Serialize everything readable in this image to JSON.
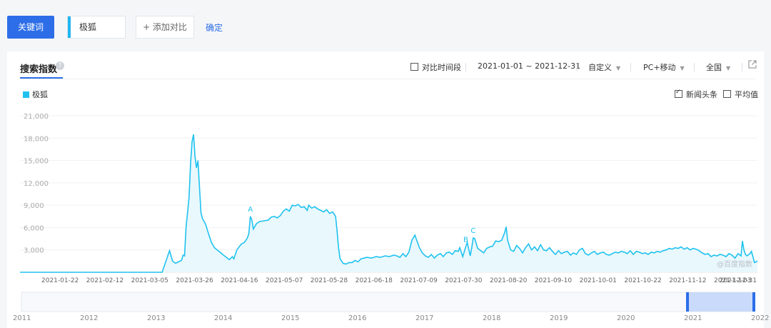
{
  "toolbar": {
    "keyword_button": "关键词",
    "keyword_value": "极狐",
    "add_compare": "+ 添加对比",
    "confirm": "确定"
  },
  "panel": {
    "title": "搜索指数",
    "help_icon": "?",
    "compare_period": "对比时间段",
    "date_range": "2021-01-01 ~ 2021-12-31",
    "custom": "自定义",
    "device": "PC+移动",
    "region": "全国",
    "news_label": "新闻头条",
    "avg_label": "平均值",
    "legend_label": "极狐",
    "watermark": "@百度指数"
  },
  "chart_data": {
    "type": "area",
    "color": "#1fc2ef",
    "legend": "top-left",
    "grid": true,
    "ylim": [
      0,
      21000
    ],
    "yticks": [
      "21,000",
      "18,000",
      "15,000",
      "12,000",
      "9,000",
      "6,000",
      "3,000"
    ],
    "ytick_values": [
      21000,
      18000,
      15000,
      12000,
      9000,
      6000,
      3000
    ],
    "xtick_labels": [
      "2021-01-22",
      "2021-02-12",
      "2021-03-05",
      "2021-03-26",
      "2021-04-16",
      "2021-05-07",
      "2021-05-28",
      "2021-06-18",
      "2021-07-09",
      "2021-07-30",
      "2021-08-20",
      "2021-09-10",
      "2021-10-01",
      "2021-10-22",
      "2021-11-12",
      "2021-12-03",
      "2021-12-31"
    ],
    "series": [
      {
        "name": "极狐",
        "points": [
          [
            0,
            0
          ],
          [
            95,
            0
          ],
          [
            100,
            2900
          ],
          [
            102,
            1500
          ],
          [
            104,
            1200
          ],
          [
            106,
            1400
          ],
          [
            108,
            1600
          ],
          [
            109,
            2300
          ],
          [
            110,
            2200
          ],
          [
            111,
            6000
          ],
          [
            112,
            8000
          ],
          [
            113,
            10000
          ],
          [
            114,
            14500
          ],
          [
            115,
            17500
          ],
          [
            116,
            18500
          ],
          [
            117,
            15500
          ],
          [
            118,
            14000
          ],
          [
            119,
            15000
          ],
          [
            120,
            11500
          ],
          [
            121,
            8000
          ],
          [
            122,
            7200
          ],
          [
            124,
            6500
          ],
          [
            126,
            5200
          ],
          [
            128,
            4000
          ],
          [
            130,
            3300
          ],
          [
            133,
            2800
          ],
          [
            136,
            2300
          ],
          [
            138,
            2000
          ],
          [
            140,
            1700
          ],
          [
            142,
            2100
          ],
          [
            143,
            1800
          ],
          [
            145,
            3000
          ],
          [
            148,
            3800
          ],
          [
            150,
            4000
          ],
          [
            152,
            4600
          ],
          [
            153,
            5200
          ],
          [
            154,
            7500
          ],
          [
            155,
            7000
          ],
          [
            156,
            5800
          ],
          [
            158,
            6500
          ],
          [
            160,
            6800
          ],
          [
            163,
            6900
          ],
          [
            166,
            7000
          ],
          [
            168,
            7400
          ],
          [
            170,
            7500
          ],
          [
            172,
            7300
          ],
          [
            174,
            7600
          ],
          [
            176,
            8200
          ],
          [
            178,
            8500
          ],
          [
            180,
            8200
          ],
          [
            182,
            9000
          ],
          [
            184,
            8900
          ],
          [
            186,
            9100
          ],
          [
            188,
            8700
          ],
          [
            190,
            8800
          ],
          [
            192,
            8300
          ],
          [
            193,
            9000
          ],
          [
            195,
            8600
          ],
          [
            197,
            8800
          ],
          [
            199,
            8500
          ],
          [
            201,
            8300
          ],
          [
            203,
            8100
          ],
          [
            205,
            8400
          ],
          [
            207,
            7900
          ],
          [
            209,
            8100
          ],
          [
            211,
            7500
          ],
          [
            212,
            5500
          ],
          [
            213,
            3200
          ],
          [
            214,
            1800
          ],
          [
            216,
            1200
          ],
          [
            218,
            1100
          ],
          [
            220,
            1300
          ],
          [
            222,
            1300
          ],
          [
            224,
            1600
          ],
          [
            226,
            1400
          ],
          [
            228,
            1800
          ],
          [
            230,
            1900
          ],
          [
            232,
            2000
          ],
          [
            235,
            1900
          ],
          [
            238,
            2100
          ],
          [
            241,
            2000
          ],
          [
            244,
            2200
          ],
          [
            247,
            2100
          ],
          [
            250,
            2300
          ],
          [
            252,
            2200
          ],
          [
            254,
            2000
          ],
          [
            256,
            2500
          ],
          [
            258,
            2100
          ],
          [
            260,
            2700
          ],
          [
            262,
            4300
          ],
          [
            264,
            5000
          ],
          [
            265,
            4400
          ],
          [
            267,
            3300
          ],
          [
            269,
            2600
          ],
          [
            271,
            2200
          ],
          [
            273,
            2000
          ],
          [
            275,
            2400
          ],
          [
            277,
            1900
          ],
          [
            279,
            2300
          ],
          [
            281,
            2500
          ],
          [
            283,
            2100
          ],
          [
            285,
            2600
          ],
          [
            287,
            2700
          ],
          [
            289,
            2400
          ],
          [
            291,
            2900
          ],
          [
            293,
            2800
          ],
          [
            294,
            3300
          ],
          [
            296,
            2100
          ],
          [
            298,
            3400
          ],
          [
            299,
            4000
          ],
          [
            301,
            2200
          ],
          [
            302,
            3300
          ],
          [
            303,
            4600
          ],
          [
            304,
            4500
          ],
          [
            306,
            3200
          ],
          [
            308,
            2900
          ],
          [
            310,
            2600
          ],
          [
            312,
            3200
          ],
          [
            314,
            3400
          ],
          [
            316,
            3500
          ],
          [
            318,
            4200
          ],
          [
            320,
            4100
          ],
          [
            322,
            4300
          ],
          [
            324,
            5300
          ],
          [
            325,
            6100
          ],
          [
            326,
            4300
          ],
          [
            328,
            3000
          ],
          [
            330,
            2800
          ],
          [
            332,
            3600
          ],
          [
            334,
            3200
          ],
          [
            336,
            2600
          ],
          [
            338,
            3300
          ],
          [
            340,
            3800
          ],
          [
            342,
            3000
          ],
          [
            344,
            3400
          ],
          [
            346,
            2900
          ],
          [
            348,
            3700
          ],
          [
            350,
            3000
          ],
          [
            352,
            2900
          ],
          [
            354,
            3300
          ],
          [
            356,
            2800
          ],
          [
            358,
            2400
          ],
          [
            360,
            2900
          ],
          [
            362,
            2500
          ],
          [
            364,
            2700
          ],
          [
            366,
            2800
          ],
          [
            368,
            2300
          ],
          [
            370,
            2600
          ],
          [
            372,
            2400
          ],
          [
            374,
            3000
          ],
          [
            376,
            3200
          ],
          [
            378,
            2500
          ],
          [
            380,
            2300
          ],
          [
            382,
            2600
          ],
          [
            384,
            2800
          ],
          [
            386,
            2400
          ],
          [
            388,
            2600
          ],
          [
            390,
            2700
          ],
          [
            392,
            2400
          ],
          [
            394,
            2300
          ],
          [
            396,
            2500
          ],
          [
            398,
            2700
          ],
          [
            400,
            2600
          ],
          [
            402,
            2800
          ],
          [
            404,
            2700
          ],
          [
            406,
            2500
          ],
          [
            408,
            2900
          ],
          [
            410,
            2400
          ],
          [
            412,
            2800
          ],
          [
            414,
            2700
          ],
          [
            416,
            2500
          ],
          [
            418,
            2600
          ],
          [
            420,
            2400
          ],
          [
            422,
            2700
          ],
          [
            424,
            2600
          ],
          [
            426,
            2800
          ],
          [
            428,
            2700
          ],
          [
            430,
            2900
          ],
          [
            432,
            3000
          ],
          [
            434,
            3200
          ],
          [
            436,
            3100
          ],
          [
            438,
            3300
          ],
          [
            440,
            3200
          ],
          [
            442,
            3400
          ],
          [
            444,
            3100
          ],
          [
            446,
            3300
          ],
          [
            448,
            3000
          ],
          [
            450,
            3200
          ],
          [
            452,
            3100
          ],
          [
            454,
            2900
          ],
          [
            456,
            2600
          ],
          [
            458,
            2400
          ],
          [
            460,
            2500
          ],
          [
            462,
            2100
          ],
          [
            464,
            2300
          ],
          [
            466,
            2200
          ],
          [
            468,
            2400
          ],
          [
            470,
            2300
          ],
          [
            472,
            2100
          ],
          [
            474,
            2500
          ],
          [
            476,
            2300
          ],
          [
            478,
            1900
          ],
          [
            480,
            2500
          ],
          [
            482,
            2200
          ],
          [
            483,
            4200
          ],
          [
            484,
            3000
          ],
          [
            485,
            2400
          ],
          [
            486,
            2200
          ],
          [
            488,
            2500
          ],
          [
            489,
            2800
          ],
          [
            490,
            2100
          ],
          [
            491,
            1300
          ],
          [
            493,
            1500
          ]
        ]
      }
    ],
    "annotations": [
      {
        "label": "A",
        "x": 154,
        "value": 7500
      },
      {
        "label": "B",
        "x": 298,
        "value": 3400
      },
      {
        "label": "C",
        "x": 303,
        "value": 4600
      }
    ],
    "navigator": {
      "year_labels": [
        "2011",
        "2012",
        "2013",
        "2014",
        "2015",
        "2016",
        "2017",
        "2018",
        "2019",
        "2020",
        "2021",
        "2022"
      ],
      "selected_range": [
        "2021",
        "2022"
      ]
    }
  }
}
